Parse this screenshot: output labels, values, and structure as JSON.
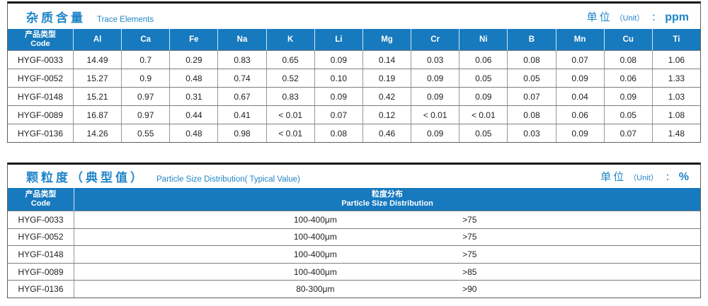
{
  "colors": {
    "header_bg": "#1779be",
    "title_text": "#2286c9",
    "top_border": "#161616",
    "grid_line": "#989898"
  },
  "trace_table": {
    "title_zh": "杂质含量",
    "title_en": "Trace Elements",
    "unit": {
      "zh": "单位",
      "paren": "（Unit）",
      "colon": "：",
      "value": "ppm"
    },
    "code_header": {
      "zh": "产品类型",
      "en": "Code"
    },
    "columns": [
      "Al",
      "Ca",
      "Fe",
      "Na",
      "K",
      "Li",
      "Mg",
      "Cr",
      "Ni",
      "B",
      "Mn",
      "Cu",
      "Ti"
    ],
    "rows": [
      {
        "code": "HYGF-0033",
        "values": [
          "14.49",
          "0.7",
          "0.29",
          "0.83",
          "0.65",
          "0.09",
          "0.14",
          "0.03",
          "0.06",
          "0.08",
          "0.07",
          "0.08",
          "1.06"
        ]
      },
      {
        "code": "HYGF-0052",
        "values": [
          "15.27",
          "0.9",
          "0.48",
          "0.74",
          "0.52",
          "0.10",
          "0.19",
          "0.09",
          "0.05",
          "0.05",
          "0.09",
          "0.06",
          "1.33"
        ]
      },
      {
        "code": "HYGF-0148",
        "values": [
          "15.21",
          "0.97",
          "0.31",
          "0.67",
          "0.83",
          "0.09",
          "0.42",
          "0.09",
          "0.09",
          "0.07",
          "0.04",
          "0.09",
          "1.03"
        ]
      },
      {
        "code": "HYGF-0089",
        "values": [
          "16.87",
          "0.97",
          "0.44",
          "0.41",
          "< 0.01",
          "0.07",
          "0.12",
          "< 0.01",
          "< 0.01",
          "0.08",
          "0.06",
          "0.05",
          "1.08"
        ]
      },
      {
        "code": "HYGF-0136",
        "values": [
          "14.26",
          "0.55",
          "0.48",
          "0.98",
          "< 0.01",
          "0.08",
          "0.46",
          "0.09",
          "0.05",
          "0.03",
          "0.09",
          "0.07",
          "1.48"
        ]
      }
    ]
  },
  "particle_table": {
    "title_zh": "颗粒度（典型值）",
    "title_en": "Particle Size Distribution( Typical Value)",
    "unit": {
      "zh": "单位",
      "paren": "（Unit）",
      "colon": "：",
      "value": "%"
    },
    "code_header": {
      "zh": "产品类型",
      "en": "Code"
    },
    "dist_header": {
      "zh": "粒度分布",
      "en": "Particle Size  Distribution"
    },
    "rows": [
      {
        "code": "HYGF-0033",
        "range": "100-400μm",
        "percent": ">75"
      },
      {
        "code": "HYGF-0052",
        "range": "100-400μm",
        "percent": ">75"
      },
      {
        "code": "HYGF-0148",
        "range": "100-400μm",
        "percent": ">75"
      },
      {
        "code": "HYGF-0089",
        "range": "100-400μm",
        "percent": ">85"
      },
      {
        "code": "HYGF-0136",
        "range": "80-300μm",
        "percent": ">90"
      }
    ]
  }
}
